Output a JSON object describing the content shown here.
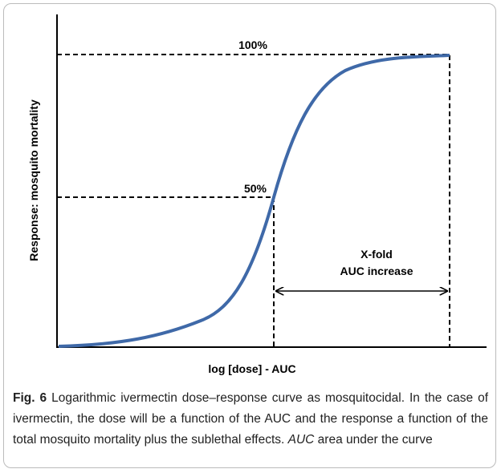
{
  "figure": {
    "y_axis_label": "Response: mosquito mortality",
    "x_axis_label": "log [dose] - AUC",
    "label_top": "100%",
    "label_mid": "50%",
    "arrow_label_1": "X-fold",
    "arrow_label_2": "AUC increase"
  },
  "caption": {
    "label": "Fig. 6",
    "text": "Logarithmic ivermectin dose–response curve as mosquitocidal. In the case of ivermectin, the dose will be a function of the AUC and the response a function of the total mosquito mortality plus the sublethal effects.",
    "abbrev": "AUC",
    "abbrev_def": "area under the curve"
  }
}
